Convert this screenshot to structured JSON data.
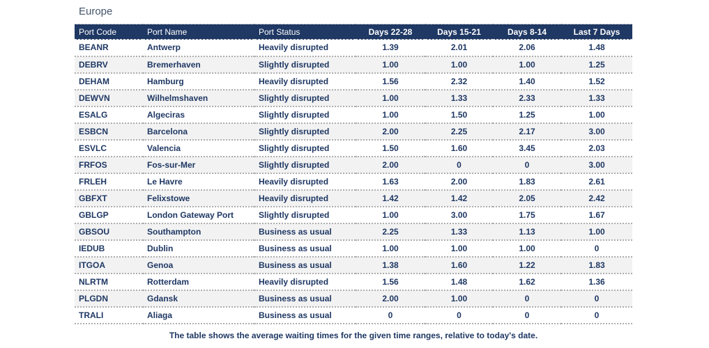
{
  "title": "Europe",
  "footnote": "The table shows the average waiting times for the given time ranges, relative to today's date.",
  "colors": {
    "header_bg": "#1F3864",
    "header_text": "#FFFFFF",
    "body_text": "#1F3864",
    "title_text": "#44546A",
    "row_alt_bg": "#F2F2F2"
  },
  "table": {
    "columns": [
      "Port Code",
      "Port Name",
      "Port Status",
      "Days 22-28",
      "Days 15-21",
      "Days 8-14",
      "Last 7 Days"
    ],
    "rows": [
      {
        "code": "BEANR",
        "name": "Antwerp",
        "status": "Heavily disrupted",
        "d22_28": "1.39",
        "d15_21": "2.01",
        "d8_14": "2.06",
        "last7": "1.48"
      },
      {
        "code": "DEBRV",
        "name": "Bremerhaven",
        "status": "Slightly disrupted",
        "d22_28": "1.00",
        "d15_21": "1.00",
        "d8_14": "1.00",
        "last7": "1.25"
      },
      {
        "code": "DEHAM",
        "name": "Hamburg",
        "status": "Heavily disrupted",
        "d22_28": "1.56",
        "d15_21": "2.32",
        "d8_14": "1.40",
        "last7": "1.52"
      },
      {
        "code": "DEWVN",
        "name": "Wilhelmshaven",
        "status": "Slightly disrupted",
        "d22_28": "1.00",
        "d15_21": "1.33",
        "d8_14": "2.33",
        "last7": "1.33"
      },
      {
        "code": "ESALG",
        "name": "Algeciras",
        "status": "Slightly disrupted",
        "d22_28": "1.00",
        "d15_21": "1.50",
        "d8_14": "1.25",
        "last7": "1.00"
      },
      {
        "code": "ESBCN",
        "name": "Barcelona",
        "status": "Slightly disrupted",
        "d22_28": "2.00",
        "d15_21": "2.25",
        "d8_14": "2.17",
        "last7": "3.00"
      },
      {
        "code": "ESVLC",
        "name": "Valencia",
        "status": "Slightly disrupted",
        "d22_28": "1.50",
        "d15_21": "1.60",
        "d8_14": "3.45",
        "last7": "2.03"
      },
      {
        "code": "FRFOS",
        "name": "Fos-sur-Mer",
        "status": "Slightly disrupted",
        "d22_28": "2.00",
        "d15_21": "0",
        "d8_14": "0",
        "last7": "3.00"
      },
      {
        "code": "FRLEH",
        "name": "Le Havre",
        "status": "Heavily disrupted",
        "d22_28": "1.63",
        "d15_21": "2.00",
        "d8_14": "1.83",
        "last7": "2.61"
      },
      {
        "code": "GBFXT",
        "name": "Felixstowe",
        "status": "Heavily disrupted",
        "d22_28": "1.42",
        "d15_21": "1.42",
        "d8_14": "2.05",
        "last7": "2.42"
      },
      {
        "code": "GBLGP",
        "name": "London Gateway Port",
        "status": "Slightly disrupted",
        "d22_28": "1.00",
        "d15_21": "3.00",
        "d8_14": "1.75",
        "last7": "1.67"
      },
      {
        "code": "GBSOU",
        "name": "Southampton",
        "status": "Business as usual",
        "d22_28": "2.25",
        "d15_21": "1.33",
        "d8_14": "1.13",
        "last7": "1.00"
      },
      {
        "code": "IEDUB",
        "name": "Dublin",
        "status": "Business as usual",
        "d22_28": "1.00",
        "d15_21": "1.00",
        "d8_14": "1.00",
        "last7": "0"
      },
      {
        "code": "ITGOA",
        "name": "Genoa",
        "status": "Business as usual",
        "d22_28": "1.38",
        "d15_21": "1.60",
        "d8_14": "1.22",
        "last7": "1.83"
      },
      {
        "code": "NLRTM",
        "name": "Rotterdam",
        "status": "Heavily disrupted",
        "d22_28": "1.56",
        "d15_21": "1.48",
        "d8_14": "1.62",
        "last7": "1.36"
      },
      {
        "code": "PLGDN",
        "name": "Gdansk",
        "status": "Business as usual",
        "d22_28": "2.00",
        "d15_21": "1.00",
        "d8_14": "0",
        "last7": "0"
      },
      {
        "code": "TRALI",
        "name": "Aliaga",
        "status": "Business as usual",
        "d22_28": "0",
        "d15_21": "0",
        "d8_14": "0",
        "last7": "0"
      }
    ]
  }
}
